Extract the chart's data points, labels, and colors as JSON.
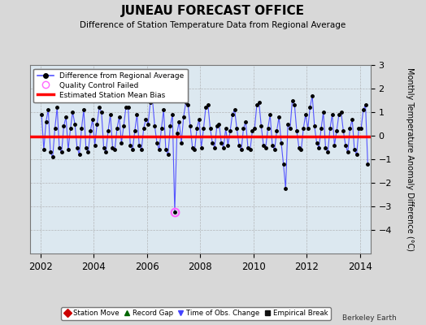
{
  "title": "JUNEAU FORECAST OFFICE",
  "subtitle": "Difference of Station Temperature Data from Regional Average",
  "ylabel": "Monthly Temperature Anomaly Difference (°C)",
  "xlabel_years": [
    2002,
    2004,
    2006,
    2008,
    2010,
    2012,
    2014
  ],
  "ylim": [
    -5,
    3
  ],
  "xlim": [
    2001.6,
    2014.4
  ],
  "mean_bias": -0.02,
  "background_color": "#d8d8d8",
  "plot_bg_color": "#dce8f0",
  "line_color": "#5555ff",
  "dot_color": "#000000",
  "bias_color": "#ff0000",
  "qc_fail_color": "#ff66ff",
  "attribution": "Berkeley Earth",
  "legend_main": [
    {
      "label": "Difference from Regional Average",
      "color": "#5555ff",
      "marker": "o",
      "type": "line"
    },
    {
      "label": "Quality Control Failed",
      "color": "#ff66ff",
      "marker": "o",
      "type": "marker_open"
    },
    {
      "label": "Estimated Station Mean Bias",
      "color": "#ff0000",
      "type": "hline"
    }
  ],
  "legend_bottom": [
    {
      "label": "Station Move",
      "color": "#cc0000",
      "marker": "D"
    },
    {
      "label": "Record Gap",
      "color": "#006600",
      "marker": "^"
    },
    {
      "label": "Time of Obs. Change",
      "color": "#4444ff",
      "marker": "v"
    },
    {
      "label": "Empirical Break",
      "color": "#111111",
      "marker": "s"
    }
  ],
  "data_x": [
    2002.042,
    2002.125,
    2002.208,
    2002.292,
    2002.375,
    2002.458,
    2002.542,
    2002.625,
    2002.708,
    2002.792,
    2002.875,
    2002.958,
    2003.042,
    2003.125,
    2003.208,
    2003.292,
    2003.375,
    2003.458,
    2003.542,
    2003.625,
    2003.708,
    2003.792,
    2003.875,
    2003.958,
    2004.042,
    2004.125,
    2004.208,
    2004.292,
    2004.375,
    2004.458,
    2004.542,
    2004.625,
    2004.708,
    2004.792,
    2004.875,
    2004.958,
    2005.042,
    2005.125,
    2005.208,
    2005.292,
    2005.375,
    2005.458,
    2005.542,
    2005.625,
    2005.708,
    2005.792,
    2005.875,
    2005.958,
    2006.042,
    2006.125,
    2006.208,
    2006.292,
    2006.375,
    2006.458,
    2006.542,
    2006.625,
    2006.708,
    2006.792,
    2006.875,
    2006.958,
    2007.042,
    2007.125,
    2007.208,
    2007.292,
    2007.375,
    2007.458,
    2007.542,
    2007.625,
    2007.708,
    2007.792,
    2007.875,
    2007.958,
    2008.042,
    2008.125,
    2008.208,
    2008.292,
    2008.375,
    2008.458,
    2008.542,
    2008.625,
    2008.708,
    2008.792,
    2008.875,
    2008.958,
    2009.042,
    2009.125,
    2009.208,
    2009.292,
    2009.375,
    2009.458,
    2009.542,
    2009.625,
    2009.708,
    2009.792,
    2009.875,
    2009.958,
    2010.042,
    2010.125,
    2010.208,
    2010.292,
    2010.375,
    2010.458,
    2010.542,
    2010.625,
    2010.708,
    2010.792,
    2010.875,
    2010.958,
    2011.042,
    2011.125,
    2011.208,
    2011.292,
    2011.375,
    2011.458,
    2011.542,
    2011.625,
    2011.708,
    2011.792,
    2011.875,
    2011.958,
    2012.042,
    2012.125,
    2012.208,
    2012.292,
    2012.375,
    2012.458,
    2012.542,
    2012.625,
    2012.708,
    2012.792,
    2012.875,
    2012.958,
    2013.042,
    2013.125,
    2013.208,
    2013.292,
    2013.375,
    2013.458,
    2013.542,
    2013.625,
    2013.708,
    2013.792,
    2013.875,
    2013.958,
    2014.042,
    2014.125,
    2014.208,
    2014.292
  ],
  "data_y": [
    0.9,
    -0.6,
    0.6,
    1.1,
    -0.7,
    -0.9,
    0.3,
    1.2,
    -0.5,
    -0.7,
    0.4,
    0.8,
    -0.6,
    0.3,
    1.0,
    0.5,
    -0.5,
    -0.8,
    0.3,
    1.1,
    -0.5,
    -0.7,
    0.2,
    0.7,
    -0.4,
    0.5,
    1.2,
    1.0,
    -0.5,
    -0.7,
    0.2,
    0.9,
    -0.5,
    -0.6,
    0.3,
    0.8,
    -0.3,
    0.4,
    1.2,
    1.2,
    -0.4,
    -0.6,
    0.2,
    0.9,
    -0.4,
    -0.6,
    0.3,
    0.7,
    0.5,
    1.4,
    1.5,
    0.4,
    -0.3,
    -0.6,
    0.3,
    1.1,
    -0.6,
    -0.8,
    0.4,
    0.9,
    -3.25,
    0.1,
    0.6,
    -0.3,
    0.8,
    1.4,
    1.3,
    0.4,
    -0.5,
    -0.6,
    0.3,
    0.7,
    -0.5,
    0.3,
    1.2,
    1.3,
    0.3,
    -0.3,
    -0.5,
    0.4,
    0.5,
    -0.3,
    -0.5,
    0.3,
    -0.4,
    0.2,
    0.9,
    1.1,
    0.3,
    -0.4,
    -0.6,
    0.3,
    0.6,
    -0.5,
    -0.6,
    0.2,
    0.3,
    1.3,
    1.4,
    0.4,
    -0.4,
    -0.5,
    0.3,
    0.9,
    -0.4,
    -0.6,
    0.2,
    0.8,
    -0.3,
    -1.2,
    -2.25,
    0.5,
    0.3,
    1.5,
    1.3,
    0.2,
    -0.5,
    -0.6,
    0.3,
    0.9,
    0.3,
    1.2,
    1.7,
    0.4,
    -0.3,
    -0.5,
    0.3,
    1.0,
    -0.5,
    -0.7,
    0.3,
    0.9,
    -0.4,
    0.2,
    0.9,
    1.0,
    0.2,
    -0.4,
    -0.7,
    0.3,
    0.7,
    -0.6,
    -0.8,
    0.3,
    0.3,
    1.1,
    1.3,
    -1.2
  ],
  "qc_fail_x": [
    2007.042
  ],
  "qc_fail_y": [
    -3.25
  ],
  "yticks": [
    -4,
    -3,
    -2,
    -1,
    0,
    1,
    2,
    3
  ]
}
